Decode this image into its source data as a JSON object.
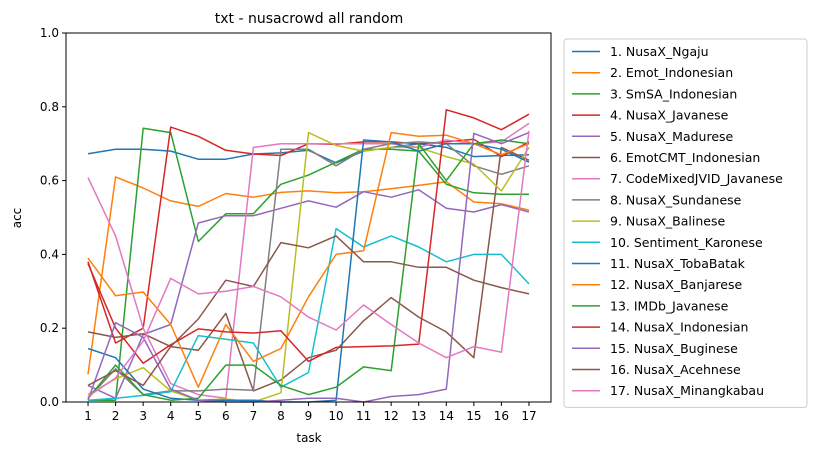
{
  "chart_data": {
    "type": "line",
    "title": "txt - nusacrowd all random",
    "xlabel": "task",
    "ylabel": "acc",
    "x": [
      1,
      2,
      3,
      4,
      5,
      6,
      7,
      8,
      9,
      10,
      11,
      12,
      13,
      14,
      15,
      16,
      17
    ],
    "xtick_labels": [
      "1",
      "2",
      "3",
      "4",
      "5",
      "6",
      "7",
      "8",
      "9",
      "10",
      "11",
      "12",
      "13",
      "14",
      "15",
      "16",
      "17"
    ],
    "ylim": [
      0.0,
      1.0
    ],
    "yticks": [
      0.0,
      0.2,
      0.4,
      0.6,
      0.8,
      1.0
    ],
    "ytick_labels": [
      "0.0",
      "0.2",
      "0.4",
      "0.6",
      "0.8",
      "1.0"
    ],
    "grid": false,
    "legend_position": "outside-right",
    "series": [
      {
        "name": "1. NusaX_Ngaju",
        "color": "#1f77b4",
        "values": [
          0.673,
          0.685,
          0.685,
          0.68,
          0.658,
          0.658,
          0.672,
          0.675,
          0.682,
          0.648,
          0.68,
          0.69,
          0.7,
          0.69,
          0.665,
          0.668,
          0.67
        ]
      },
      {
        "name": "2. Emot_Indonesian",
        "color": "#ff7f0e",
        "values": [
          0.075,
          0.61,
          0.58,
          0.545,
          0.53,
          0.565,
          0.555,
          0.568,
          0.572,
          0.567,
          0.57,
          0.578,
          0.587,
          0.597,
          0.542,
          0.537,
          0.52
        ]
      },
      {
        "name": "3. SmSA_Indonesian",
        "color": "#2ca02c",
        "values": [
          0.005,
          0.005,
          0.742,
          0.73,
          0.435,
          0.51,
          0.51,
          0.59,
          0.615,
          0.65,
          0.685,
          0.685,
          0.68,
          0.59,
          0.567,
          0.563,
          0.563
        ]
      },
      {
        "name": "4. NusaX_Javanese",
        "color": "#d62728",
        "values": [
          0.38,
          0.16,
          0.2,
          0.745,
          0.72,
          0.682,
          0.672,
          0.668,
          0.7,
          0.698,
          0.705,
          0.705,
          0.7,
          0.705,
          0.712,
          0.665,
          0.705
        ]
      },
      {
        "name": "5. NusaX_Madurese",
        "color": "#9467bd",
        "values": [
          0.045,
          0.01,
          0.183,
          0.21,
          0.485,
          0.505,
          0.505,
          0.525,
          0.545,
          0.528,
          0.57,
          0.555,
          0.575,
          0.525,
          0.515,
          0.535,
          0.515
        ]
      },
      {
        "name": "6. EmotCMT_Indonesian",
        "color": "#8c564b",
        "values": [
          0.19,
          0.175,
          0.185,
          0.15,
          0.14,
          0.24,
          0.03,
          0.06,
          0.12,
          0.14,
          0.22,
          0.283,
          0.23,
          0.19,
          0.12,
          0.69,
          0.655
        ]
      },
      {
        "name": "7. CodeMixedJVID_Javanese",
        "color": "#e377c2",
        "values": [
          0.608,
          0.45,
          0.2,
          0.05,
          0.02,
          0.01,
          0.69,
          0.7,
          0.7,
          0.7,
          0.7,
          0.7,
          0.69,
          0.71,
          0.7,
          0.705,
          0.755
        ]
      },
      {
        "name": "8. NusaX_Sundanese",
        "color": "#7f7f7f",
        "values": [
          0.01,
          0.09,
          0.02,
          0.03,
          0.03,
          0.035,
          0.032,
          0.685,
          0.685,
          0.64,
          0.685,
          0.7,
          0.705,
          0.7,
          0.64,
          0.617,
          0.64
        ]
      },
      {
        "name": "9. NusaX_Balinese",
        "color": "#bcbd22",
        "values": [
          0.02,
          0.063,
          0.093,
          0.03,
          0.005,
          0.008,
          0.0,
          0.025,
          0.73,
          0.695,
          0.68,
          0.69,
          0.69,
          0.665,
          0.645,
          0.572,
          0.69
        ]
      },
      {
        "name": "10. Sentiment_Karonese",
        "color": "#17becf",
        "values": [
          0.005,
          0.01,
          0.018,
          0.028,
          0.18,
          0.17,
          0.16,
          0.04,
          0.08,
          0.47,
          0.42,
          0.45,
          0.42,
          0.38,
          0.4,
          0.4,
          0.32
        ]
      },
      {
        "name": "11. NusaX_TobaBatak",
        "color": "#1f77b4",
        "values": [
          0.145,
          0.12,
          0.035,
          0.01,
          0.005,
          0.005,
          0.005,
          0.0,
          0.0,
          0.005,
          0.71,
          0.705,
          0.68,
          0.7,
          0.7,
          0.685,
          0.65
        ]
      },
      {
        "name": "12. NusaX_Banjarese",
        "color": "#ff7f0e",
        "values": [
          0.39,
          0.288,
          0.298,
          0.21,
          0.04,
          0.21,
          0.11,
          0.145,
          0.285,
          0.4,
          0.41,
          0.73,
          0.72,
          0.723,
          0.7,
          0.67,
          0.7
        ]
      },
      {
        "name": "13. IMDb_Javanese",
        "color": "#2ca02c",
        "values": [
          0.01,
          0.1,
          0.02,
          0.005,
          0.01,
          0.1,
          0.1,
          0.045,
          0.02,
          0.04,
          0.095,
          0.085,
          0.7,
          0.6,
          0.7,
          0.71,
          0.7
        ]
      },
      {
        "name": "14. NusaX_Indonesian",
        "color": "#d62728",
        "values": [
          0.375,
          0.2,
          0.105,
          0.155,
          0.198,
          0.19,
          0.187,
          0.193,
          0.11,
          0.148,
          0.15,
          0.152,
          0.157,
          0.792,
          0.77,
          0.738,
          0.78
        ]
      },
      {
        "name": "15. NusaX_Buginese",
        "color": "#9467bd",
        "values": [
          0.005,
          0.215,
          0.175,
          0.035,
          0.005,
          0.0,
          0.0,
          0.005,
          0.01,
          0.01,
          0.0,
          0.015,
          0.02,
          0.035,
          0.728,
          0.7,
          0.73
        ]
      },
      {
        "name": "16. NusaX_Acehnese",
        "color": "#8c564b",
        "values": [
          0.045,
          0.085,
          0.045,
          0.15,
          0.225,
          0.33,
          0.313,
          0.432,
          0.418,
          0.45,
          0.38,
          0.38,
          0.365,
          0.365,
          0.33,
          0.31,
          0.293
        ]
      },
      {
        "name": "17. NusaX_Minangkabau",
        "color": "#e377c2",
        "values": [
          0.015,
          0.065,
          0.165,
          0.335,
          0.293,
          0.3,
          0.313,
          0.285,
          0.23,
          0.195,
          0.263,
          0.21,
          0.16,
          0.12,
          0.15,
          0.135,
          0.735
        ]
      }
    ]
  }
}
